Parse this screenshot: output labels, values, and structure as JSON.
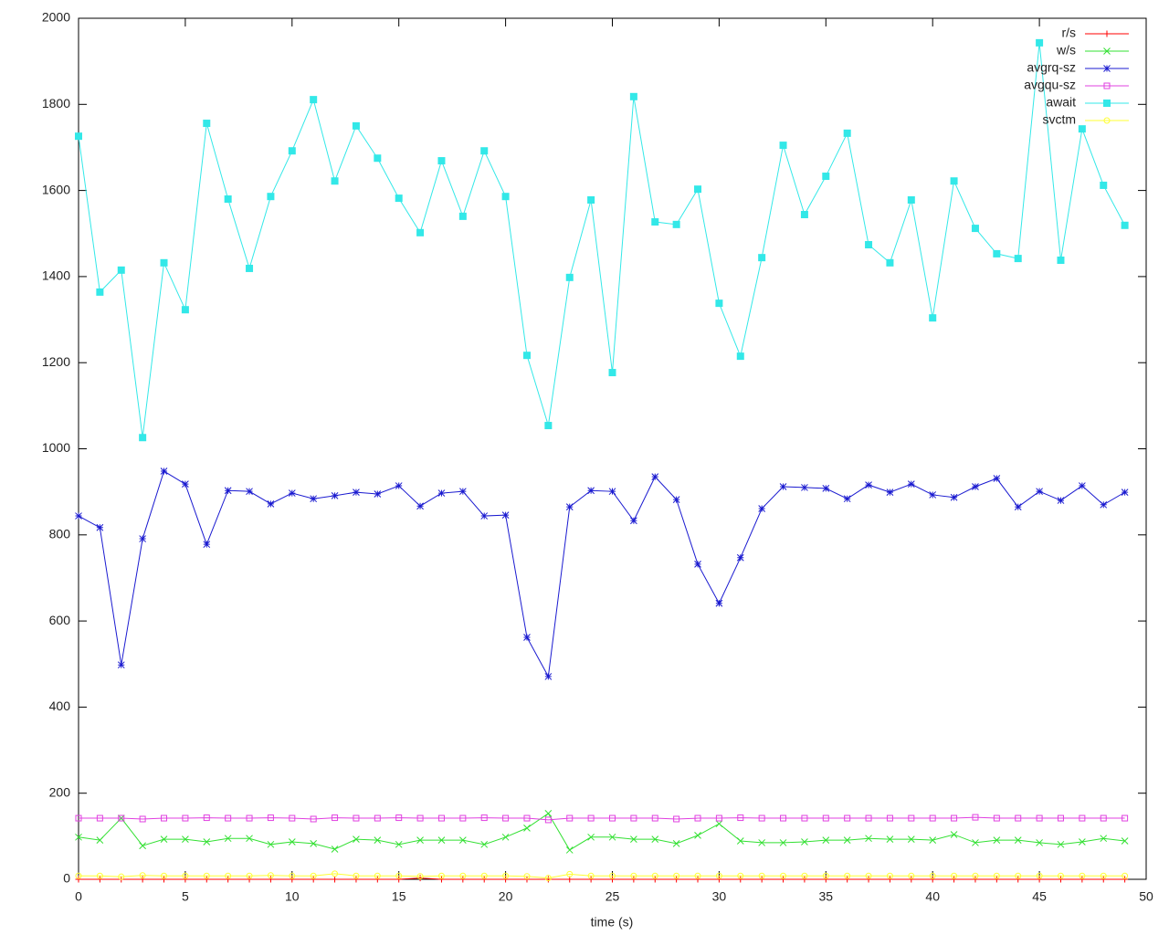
{
  "chart_data": {
    "type": "line",
    "xlabel": "time (s)",
    "x": [
      0,
      1,
      2,
      3,
      4,
      5,
      6,
      7,
      8,
      9,
      10,
      11,
      12,
      13,
      14,
      15,
      16,
      17,
      18,
      19,
      20,
      21,
      22,
      23,
      24,
      25,
      26,
      27,
      28,
      29,
      30,
      31,
      32,
      33,
      34,
      35,
      36,
      37,
      38,
      39,
      40,
      41,
      42,
      43,
      44,
      45,
      46,
      47,
      48,
      49
    ],
    "xlim": [
      0,
      50
    ],
    "xticks": [
      0,
      5,
      10,
      15,
      20,
      25,
      30,
      35,
      40,
      45,
      50
    ],
    "ylim": [
      0,
      2000
    ],
    "yticks": [
      0,
      200,
      400,
      600,
      800,
      1000,
      1200,
      1400,
      1600,
      1800,
      2000
    ],
    "legend": "top right",
    "series": [
      {
        "name": "r/s",
        "color": "#ff0000",
        "marker": "plus",
        "values": [
          0,
          0,
          0,
          0,
          0,
          0,
          0,
          0,
          0,
          0,
          0,
          0,
          0,
          0,
          0,
          0,
          3,
          0,
          0,
          0,
          0,
          0,
          0,
          0,
          0,
          0,
          0,
          0,
          0,
          0,
          0,
          0,
          0,
          0,
          0,
          0,
          0,
          0,
          0,
          0,
          0,
          0,
          0,
          0,
          0,
          0,
          0,
          0,
          0,
          0
        ]
      },
      {
        "name": "w/s",
        "color": "#33e033",
        "marker": "cross",
        "values": [
          98,
          91,
          142,
          78,
          93,
          93,
          87,
          95,
          95,
          81,
          87,
          83,
          70,
          93,
          91,
          81,
          91,
          91,
          91,
          81,
          98,
          119,
          153,
          68,
          98,
          98,
          93,
          93,
          83,
          102,
          129,
          89,
          85,
          85,
          87,
          91,
          91,
          95,
          93,
          93,
          91,
          104,
          85,
          91,
          91,
          85,
          81,
          87,
          95,
          89
        ]
      },
      {
        "name": "avgrq-sz",
        "color": "#1a1ad0",
        "marker": "star",
        "values": [
          844,
          817,
          498,
          791,
          948,
          918,
          778,
          903,
          901,
          872,
          897,
          884,
          891,
          899,
          895,
          914,
          867,
          897,
          901,
          844,
          846,
          562,
          471,
          865,
          903,
          901,
          833,
          935,
          882,
          732,
          641,
          747,
          861,
          912,
          910,
          908,
          884,
          916,
          899,
          918,
          893,
          887,
          912,
          931,
          865,
          901,
          880,
          914,
          870,
          899
        ]
      },
      {
        "name": "avgqu-sz",
        "color": "#e040e0",
        "marker": "square-open",
        "values": [
          142,
          142,
          142,
          140,
          142,
          142,
          143,
          142,
          142,
          143,
          142,
          140,
          143,
          142,
          142,
          143,
          142,
          142,
          142,
          143,
          142,
          142,
          138,
          142,
          142,
          142,
          142,
          142,
          140,
          142,
          142,
          143,
          142,
          142,
          142,
          142,
          142,
          142,
          142,
          142,
          142,
          142,
          144,
          142,
          142,
          142,
          142,
          142,
          142,
          142
        ]
      },
      {
        "name": "await",
        "color": "#33e8e8",
        "marker": "square",
        "values": [
          1726,
          1364,
          1415,
          1026,
          1432,
          1323,
          1756,
          1580,
          1419,
          1586,
          1692,
          1811,
          1622,
          1750,
          1675,
          1582,
          1502,
          1669,
          1540,
          1692,
          1586,
          1217,
          1054,
          1398,
          1578,
          1177,
          1818,
          1527,
          1521,
          1603,
          1338,
          1215,
          1444,
          1705,
          1544,
          1633,
          1733,
          1474,
          1432,
          1578,
          1304,
          1622,
          1512,
          1453,
          1442,
          1943,
          1438,
          1743,
          1612,
          1519
        ]
      },
      {
        "name": "svctm",
        "color": "#ffff33",
        "marker": "circle-open",
        "values": [
          8,
          8,
          6,
          9,
          8,
          8,
          8,
          8,
          8,
          9,
          8,
          8,
          13,
          8,
          8,
          8,
          7,
          8,
          8,
          8,
          8,
          7,
          3,
          12,
          8,
          8,
          8,
          8,
          8,
          8,
          8,
          8,
          8,
          8,
          8,
          8,
          8,
          8,
          8,
          8,
          8,
          8,
          8,
          8,
          8,
          8,
          8,
          8,
          8,
          8
        ]
      }
    ]
  }
}
